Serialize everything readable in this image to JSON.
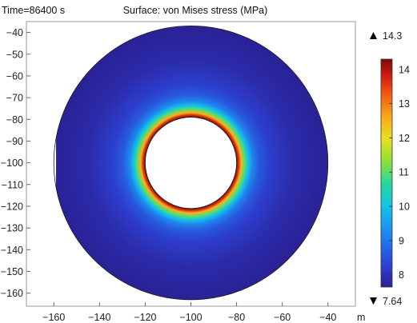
{
  "header": {
    "time_label": "Time=86400 s",
    "surface_label": "Surface: von Mises stress (MPa)"
  },
  "chart_data": {
    "type": "heatmap",
    "title": "Surface: von Mises stress (MPa)",
    "x_unit": "m",
    "xlim": [
      -172,
      -28
    ],
    "ylim": [
      -166,
      -35
    ],
    "xticks": [
      -160,
      -140,
      -120,
      -100,
      -80,
      -60,
      -40
    ],
    "yticks": [
      -40,
      -50,
      -60,
      -70,
      -80,
      -90,
      -100,
      -110,
      -120,
      -130,
      -140,
      -150,
      -160
    ],
    "domain": {
      "shape": "annulus",
      "center": [
        -100,
        -100
      ],
      "inner_radius": 20,
      "outer_radius": 60
    },
    "colorbar": {
      "colormap": "rainbow",
      "max_label": "14.3",
      "min_label": "7.64",
      "max": 14.3,
      "min": 7.64,
      "ticks": [
        8,
        9,
        10,
        11,
        12,
        13,
        14
      ]
    },
    "field_profile": [
      {
        "radius": 20,
        "value": 14.3
      },
      {
        "radius": 21,
        "value": 13.6
      },
      {
        "radius": 22,
        "value": 12.5
      },
      {
        "radius": 23.5,
        "value": 11.0
      },
      {
        "radius": 25,
        "value": 10.0
      },
      {
        "radius": 27,
        "value": 9.2
      },
      {
        "radius": 30,
        "value": 8.6
      },
      {
        "radius": 35,
        "value": 8.2
      },
      {
        "radius": 45,
        "value": 7.9
      },
      {
        "radius": 60,
        "value": 7.7
      }
    ]
  }
}
